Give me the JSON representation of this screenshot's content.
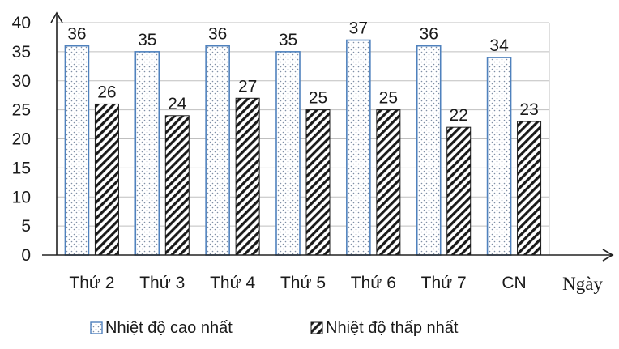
{
  "chart_data": {
    "type": "bar",
    "categories": [
      "Thứ 2",
      "Thứ 3",
      "Thứ 4",
      "Thứ 5",
      "Thứ 6",
      "Thứ 7",
      "CN"
    ],
    "series": [
      {
        "name": "Nhiệt độ cao nhất",
        "values": [
          36,
          35,
          36,
          35,
          37,
          36,
          34
        ],
        "color": "#4f81bd",
        "pattern": "dots"
      },
      {
        "name": "Nhiệt độ thấp nhất",
        "values": [
          26,
          24,
          27,
          25,
          25,
          22,
          23
        ],
        "color": "#000000",
        "pattern": "diagonal-hatch"
      }
    ],
    "xlabel": "Ngày",
    "ylabel": "",
    "ylim": [
      0,
      40
    ],
    "yticks": [
      0,
      5,
      10,
      15,
      20,
      25,
      30,
      35,
      40
    ],
    "grid": true,
    "legend_position": "bottom"
  }
}
